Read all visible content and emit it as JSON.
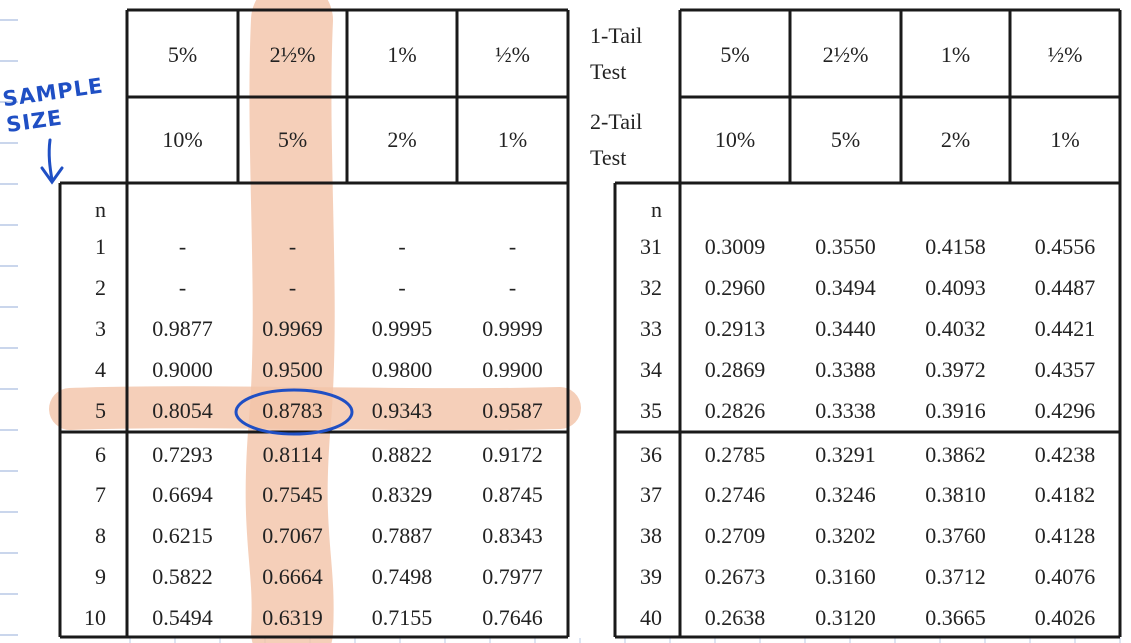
{
  "annotation": "SAMPLE SIZE",
  "left_table": {
    "headers_1tail": [
      "5%",
      "2½%",
      "1%",
      "½%"
    ],
    "headers_2tail": [
      "10%",
      "5%",
      "2%",
      "1%"
    ],
    "n_label": "n",
    "rows": [
      [
        "1",
        "-",
        "-",
        "-",
        "-"
      ],
      [
        "2",
        "-",
        "-",
        "-",
        "-"
      ],
      [
        "3",
        "0.9877",
        "0.9969",
        "0.9995",
        "0.9999"
      ],
      [
        "4",
        "0.9000",
        "0.9500",
        "0.9800",
        "0.9900"
      ],
      [
        "5",
        "0.8054",
        "0.8783",
        "0.9343",
        "0.9587"
      ],
      [
        "6",
        "0.7293",
        "0.8114",
        "0.8822",
        "0.9172"
      ],
      [
        "7",
        "0.6694",
        "0.7545",
        "0.8329",
        "0.8745"
      ],
      [
        "8",
        "0.6215",
        "0.7067",
        "0.7887",
        "0.8343"
      ],
      [
        "9",
        "0.5822",
        "0.6664",
        "0.7498",
        "0.7977"
      ],
      [
        "10",
        "0.5494",
        "0.6319",
        "0.7155",
        "0.7646"
      ]
    ]
  },
  "right_table": {
    "label_1tail": "1-Tail Test",
    "label_2tail": "2-Tail Test",
    "headers_1tail": [
      "5%",
      "2½%",
      "1%",
      "½%"
    ],
    "headers_2tail": [
      "10%",
      "5%",
      "2%",
      "1%"
    ],
    "n_label": "n",
    "rows": [
      [
        "31",
        "0.3009",
        "0.3550",
        "0.4158",
        "0.4556"
      ],
      [
        "32",
        "0.2960",
        "0.3494",
        "0.4093",
        "0.4487"
      ],
      [
        "33",
        "0.2913",
        "0.3440",
        "0.4032",
        "0.4421"
      ],
      [
        "34",
        "0.2869",
        "0.3388",
        "0.3972",
        "0.4357"
      ],
      [
        "35",
        "0.2826",
        "0.3338",
        "0.3916",
        "0.4296"
      ],
      [
        "36",
        "0.2785",
        "0.3291",
        "0.3862",
        "0.4238"
      ],
      [
        "37",
        "0.2746",
        "0.3246",
        "0.3810",
        "0.4182"
      ],
      [
        "38",
        "0.2709",
        "0.3202",
        "0.3760",
        "0.4128"
      ],
      [
        "39",
        "0.2673",
        "0.3160",
        "0.3712",
        "0.4076"
      ],
      [
        "40",
        "0.2638",
        "0.3120",
        "0.3665",
        "0.4026"
      ]
    ]
  }
}
